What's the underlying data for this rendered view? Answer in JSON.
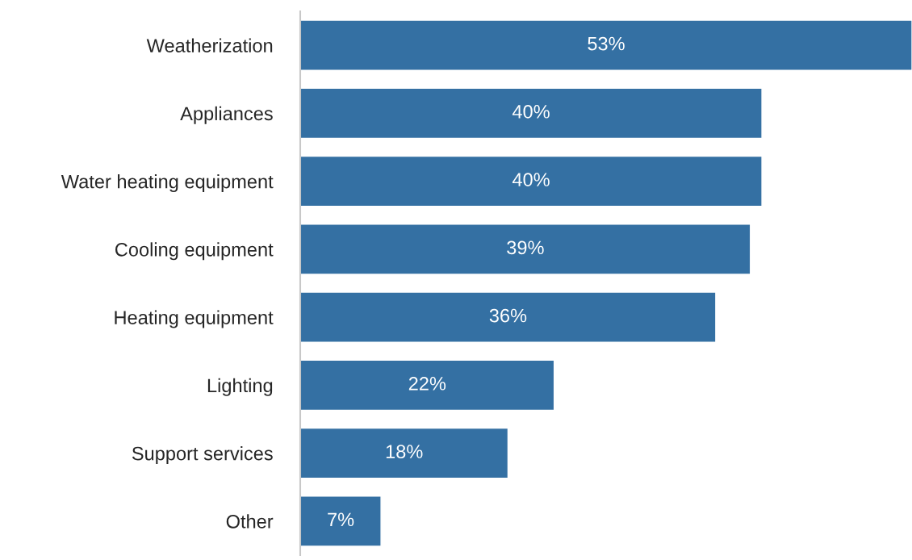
{
  "chart_data": {
    "type": "bar",
    "orientation": "horizontal",
    "categories": [
      "Weatherization",
      "Appliances",
      "Water heating equipment",
      "Cooling equipment",
      "Heating equipment",
      "Lighting",
      "Support services",
      "Other"
    ],
    "values": [
      53,
      40,
      40,
      39,
      36,
      22,
      18,
      7
    ],
    "value_labels": [
      "53%",
      "40%",
      "40%",
      "39%",
      "36%",
      "22%",
      "18%",
      "7%"
    ],
    "color": "#3470a3",
    "grid": false,
    "legend": false
  }
}
